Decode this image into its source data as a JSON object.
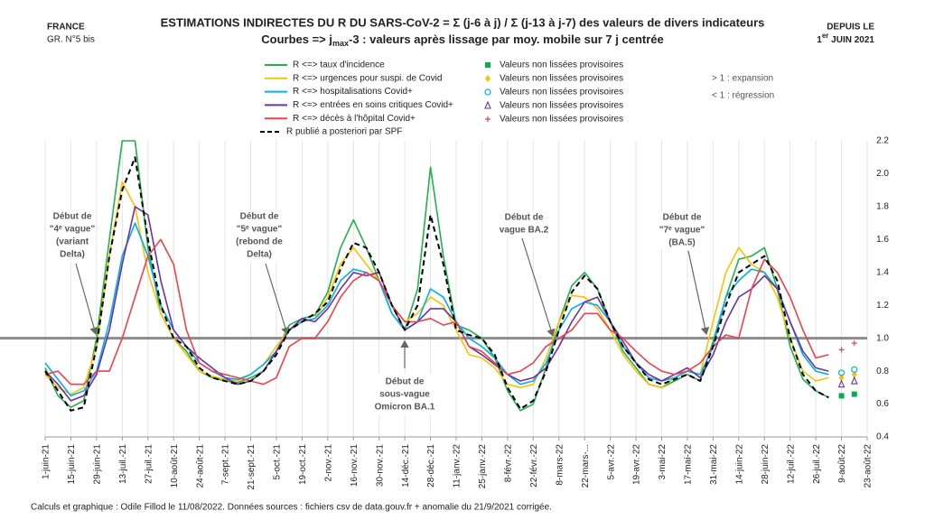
{
  "chart_data": {
    "type": "line",
    "title": "ESTIMATIONS INDIRECTES DU R DU SARS-CoV-2 = Σ (j-6 à j) / Σ (j-13 à j-7) des valeurs de divers indicateurs",
    "subtitle": [
      "Courbes => j",
      "max",
      "-3 : valeurs après lissage par moy. mobile sur 7 j centrée"
    ],
    "corner_left": [
      "FRANCE",
      "GR. N°5 bis"
    ],
    "corner_right": [
      "DEPUIS LE",
      "1",
      "er",
      " JUIN 2021"
    ],
    "notes": [
      "> 1 : expansion",
      "< 1 : régression"
    ],
    "footer": "Calculs et graphique : Odile Fillod le 11/08/2022. Données sources : fichiers csv de data.gouv.fr + anomalie du 21/9/2021 corrigée.",
    "annotations": [
      [
        "Début de",
        "\"4ᵉ vague\"",
        "(variant",
        "Delta)"
      ],
      [
        "Début de",
        "\"5ᵉ vague\"",
        "(rebond de",
        "Delta)"
      ],
      [
        "Début de",
        "sous-vague",
        "Omicron BA.1"
      ],
      [
        "Début de",
        "vague BA.2"
      ],
      [
        "Début de",
        "\"7ᵉ vague\"",
        "(BA.5)"
      ]
    ],
    "categories": [
      "1-juin-21",
      null,
      "15-juin-21",
      null,
      "29-juin-21",
      null,
      "13-juil.-21",
      null,
      "27-juil.-21",
      null,
      "10-août-21",
      null,
      "24-août-21",
      null,
      "7-sept.-21",
      null,
      "21-sept.-21",
      null,
      "5-oct.-21",
      null,
      "19-oct.-21",
      null,
      "2-nov.-21",
      null,
      "16-nov.-21",
      null,
      "30-nov.-21",
      null,
      "14-déc.-21",
      null,
      "28-déc.-21",
      null,
      "11-janv.-22",
      null,
      "25-janv.-22",
      null,
      "8-févr.-22",
      null,
      "22-févr.-22",
      null,
      "8-mars-22",
      null,
      "22-mars-...",
      null,
      "5-avr.-22",
      null,
      "19-avr.-22",
      null,
      "3-mai-22",
      null,
      "17-mai-22",
      null,
      "31-mai-22",
      null,
      "14-juin-22",
      null,
      "28-juin-22",
      null,
      "12-juil.-22",
      null,
      "26-juil.-22",
      null,
      "9-août-22",
      null,
      "23-août-22"
    ],
    "ylim": [
      0.4,
      2.2
    ],
    "yticks": [
      0.4,
      0.6,
      0.8,
      {
        "value": 1,
        "label": "1.0"
      },
      1.2,
      1.4,
      1.6,
      1.8,
      {
        "value": 2,
        "label": "2.0"
      },
      2.2
    ],
    "reference_line": 1,
    "grid": true,
    "series": [
      {
        "name": "R <=> taux d'incidence",
        "color": "#22b14c",
        "style": "solid",
        "values": [
          0.82,
          0.65,
          0.58,
          0.62,
          1.0,
          1.6,
          2.2,
          2.2,
          1.55,
          1.15,
          1.0,
          0.92,
          0.8,
          0.76,
          0.74,
          0.73,
          0.76,
          0.8,
          0.92,
          1.08,
          1.12,
          1.14,
          1.28,
          1.55,
          1.72,
          1.55,
          1.35,
          1.15,
          1.05,
          1.3,
          2.04,
          1.5,
          1.08,
          1.05,
          1.0,
          0.88,
          0.68,
          0.56,
          0.6,
          0.82,
          1.1,
          1.32,
          1.4,
          1.3,
          1.1,
          0.92,
          0.82,
          0.72,
          0.7,
          0.74,
          0.78,
          0.74,
          0.98,
          1.25,
          1.48,
          1.5,
          1.55,
          1.3,
          0.95,
          0.75,
          0.68,
          0.64,
          null,
          null,
          null
        ]
      },
      {
        "name": "R <=> urgences pour suspi. de Covid",
        "color": "#ffc000",
        "style": "solid",
        "values": [
          0.78,
          0.7,
          0.66,
          0.7,
          0.95,
          1.5,
          1.95,
          1.8,
          1.4,
          1.15,
          1.0,
          0.9,
          0.8,
          0.77,
          0.75,
          0.74,
          0.78,
          0.84,
          0.95,
          1.05,
          1.1,
          1.12,
          1.25,
          1.45,
          1.55,
          1.45,
          1.35,
          1.2,
          1.1,
          1.15,
          1.25,
          1.2,
          1.05,
          0.9,
          0.88,
          0.82,
          0.72,
          0.7,
          0.72,
          0.88,
          1.1,
          1.26,
          1.25,
          1.18,
          1.05,
          0.9,
          0.8,
          0.72,
          0.7,
          0.76,
          0.8,
          0.78,
          1.1,
          1.4,
          1.55,
          1.45,
          1.4,
          1.25,
          1.0,
          0.8,
          0.74,
          0.76,
          null,
          null,
          null
        ]
      },
      {
        "name": "R <=> hospitalisations Covid+",
        "color": "#00b0f0",
        "style": "solid",
        "values": [
          0.85,
          0.75,
          0.65,
          0.68,
          0.8,
          1.1,
          1.5,
          1.7,
          1.5,
          1.2,
          1.05,
          0.95,
          0.85,
          0.8,
          0.76,
          0.75,
          0.78,
          0.84,
          0.92,
          1.05,
          1.1,
          1.12,
          1.2,
          1.35,
          1.42,
          1.4,
          1.35,
          1.15,
          1.05,
          1.1,
          1.3,
          1.25,
          1.1,
          1.0,
          0.95,
          0.88,
          0.78,
          0.72,
          0.74,
          0.85,
          1.05,
          1.18,
          1.22,
          1.2,
          1.1,
          0.95,
          0.85,
          0.76,
          0.74,
          0.76,
          0.8,
          0.78,
          0.95,
          1.25,
          1.35,
          1.42,
          1.4,
          1.3,
          1.1,
          0.9,
          0.8,
          0.78,
          null,
          null,
          null
        ]
      },
      {
        "name": "R <=> entrées en soins critiques Covid+",
        "color": "#7030a0",
        "style": "solid",
        "values": [
          0.8,
          0.72,
          0.62,
          0.65,
          0.78,
          1.05,
          1.45,
          1.8,
          1.75,
          1.35,
          1.05,
          0.95,
          0.88,
          0.82,
          0.76,
          0.72,
          0.74,
          0.8,
          0.92,
          1.05,
          1.12,
          1.1,
          1.18,
          1.3,
          1.4,
          1.38,
          1.4,
          1.2,
          1.05,
          1.1,
          1.18,
          1.18,
          1.1,
          0.95,
          0.9,
          0.84,
          0.78,
          0.74,
          0.76,
          0.82,
          0.95,
          1.1,
          1.22,
          1.25,
          1.1,
          0.98,
          0.85,
          0.78,
          0.74,
          0.78,
          0.82,
          0.76,
          0.9,
          1.1,
          1.25,
          1.3,
          1.38,
          1.3,
          1.1,
          0.92,
          0.82,
          0.8,
          null,
          null,
          null
        ]
      },
      {
        "name": "R <=> décès à l'hôpital Covid+",
        "color": "#f0404a",
        "style": "solid",
        "values": [
          0.78,
          0.8,
          0.72,
          0.72,
          0.8,
          0.8,
          1.0,
          1.25,
          1.5,
          1.6,
          1.45,
          1.05,
          0.85,
          0.8,
          0.78,
          0.76,
          0.74,
          0.72,
          0.76,
          0.95,
          1.0,
          1.0,
          1.1,
          1.25,
          1.35,
          1.4,
          1.35,
          1.2,
          1.1,
          1.1,
          1.12,
          1.08,
          1.1,
          0.95,
          0.92,
          0.85,
          0.78,
          0.8,
          0.85,
          0.95,
          1.0,
          1.05,
          1.15,
          1.15,
          1.05,
          1.0,
          0.92,
          0.85,
          0.8,
          0.78,
          0.8,
          0.85,
          0.95,
          1.02,
          1.0,
          1.3,
          1.48,
          1.4,
          1.25,
          1.05,
          0.88,
          0.9,
          null,
          null,
          null
        ]
      },
      {
        "name": "R publié a posteriori par SPF",
        "color": "#000000",
        "style": "dashed",
        "values": [
          0.8,
          0.68,
          0.56,
          0.58,
          0.95,
          1.5,
          1.9,
          2.1,
          1.6,
          1.2,
          1.0,
          0.95,
          0.82,
          0.76,
          0.74,
          0.72,
          0.74,
          0.8,
          0.9,
          1.05,
          1.1,
          1.15,
          1.22,
          1.42,
          1.58,
          1.55,
          1.4,
          1.2,
          1.05,
          1.2,
          1.75,
          1.45,
          1.05,
          1.02,
          1.0,
          0.9,
          0.7,
          0.57,
          0.62,
          0.8,
          1.05,
          1.28,
          1.38,
          1.3,
          1.1,
          0.95,
          0.85,
          0.75,
          0.72,
          0.75,
          0.78,
          0.74,
          0.95,
          1.2,
          1.4,
          1.45,
          1.5,
          1.35,
          1.0,
          0.78,
          0.68,
          0.64,
          null,
          null,
          null
        ]
      },
      {
        "name": "Valeurs non lissées provisoires",
        "color": "#00b050",
        "marker": "square",
        "values": [
          null,
          null,
          null,
          null,
          null,
          null,
          null,
          null,
          null,
          null,
          null,
          null,
          null,
          null,
          null,
          null,
          null,
          null,
          null,
          null,
          null,
          null,
          null,
          null,
          null,
          null,
          null,
          null,
          null,
          null,
          null,
          null,
          null,
          null,
          null,
          null,
          null,
          null,
          null,
          null,
          null,
          null,
          null,
          null,
          null,
          null,
          null,
          null,
          null,
          null,
          null,
          null,
          null,
          null,
          null,
          null,
          null,
          null,
          null,
          null,
          null,
          null,
          0.65,
          0.66,
          null
        ]
      },
      {
        "name": "Valeurs non lissées provisoires",
        "color": "#ffc000",
        "marker": "diamond",
        "values": [
          null,
          null,
          null,
          null,
          null,
          null,
          null,
          null,
          null,
          null,
          null,
          null,
          null,
          null,
          null,
          null,
          null,
          null,
          null,
          null,
          null,
          null,
          null,
          null,
          null,
          null,
          null,
          null,
          null,
          null,
          null,
          null,
          null,
          null,
          null,
          null,
          null,
          null,
          null,
          null,
          null,
          null,
          null,
          null,
          null,
          null,
          null,
          null,
          null,
          null,
          null,
          null,
          null,
          null,
          null,
          null,
          null,
          null,
          null,
          null,
          null,
          null,
          0.76,
          0.78,
          null
        ]
      },
      {
        "name": "Valeurs non lissées provisoires",
        "color": "#00b0f0",
        "marker": "circle",
        "values": [
          null,
          null,
          null,
          null,
          null,
          null,
          null,
          null,
          null,
          null,
          null,
          null,
          null,
          null,
          null,
          null,
          null,
          null,
          null,
          null,
          null,
          null,
          null,
          null,
          null,
          null,
          null,
          null,
          null,
          null,
          null,
          null,
          null,
          null,
          null,
          null,
          null,
          null,
          null,
          null,
          null,
          null,
          null,
          null,
          null,
          null,
          null,
          null,
          null,
          null,
          null,
          null,
          null,
          null,
          null,
          null,
          null,
          null,
          null,
          null,
          null,
          null,
          0.79,
          0.81,
          null
        ]
      },
      {
        "name": "Valeurs non lissées provisoires",
        "color": "#7030a0",
        "marker": "triangle",
        "values": [
          null,
          null,
          null,
          null,
          null,
          null,
          null,
          null,
          null,
          null,
          null,
          null,
          null,
          null,
          null,
          null,
          null,
          null,
          null,
          null,
          null,
          null,
          null,
          null,
          null,
          null,
          null,
          null,
          null,
          null,
          null,
          null,
          null,
          null,
          null,
          null,
          null,
          null,
          null,
          null,
          null,
          null,
          null,
          null,
          null,
          null,
          null,
          null,
          null,
          null,
          null,
          null,
          null,
          null,
          null,
          null,
          null,
          null,
          null,
          null,
          null,
          null,
          0.72,
          0.74,
          null
        ]
      },
      {
        "name": "Valeurs non lissées provisoires",
        "color": "#f0404a",
        "marker": "plus",
        "values": [
          null,
          null,
          null,
          null,
          null,
          null,
          null,
          null,
          null,
          null,
          null,
          null,
          null,
          null,
          null,
          null,
          null,
          null,
          null,
          null,
          null,
          null,
          null,
          null,
          null,
          null,
          null,
          null,
          null,
          null,
          null,
          null,
          null,
          null,
          null,
          null,
          null,
          null,
          null,
          null,
          null,
          null,
          null,
          null,
          null,
          null,
          null,
          null,
          null,
          null,
          null,
          null,
          null,
          null,
          null,
          null,
          null,
          null,
          null,
          null,
          null,
          null,
          0.93,
          0.97,
          null
        ]
      }
    ]
  }
}
